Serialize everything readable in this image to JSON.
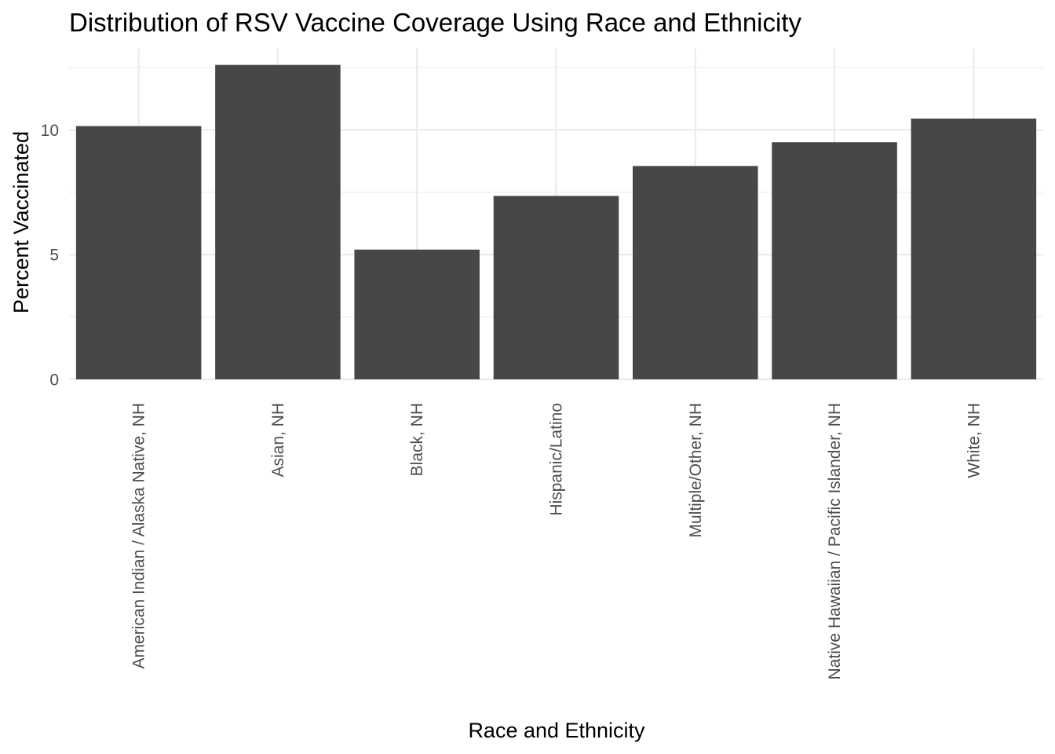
{
  "chart_data": {
    "type": "bar",
    "title": "Distribution of RSV Vaccine Coverage Using Race and Ethnicity",
    "xlabel": "Race and Ethnicity",
    "ylabel": "Percent Vaccinated",
    "categories": [
      "American Indian / Alaska Native, NH",
      "Asian, NH",
      "Black, NH",
      "Hispanic/Latino",
      "Multiple/Other, NH",
      "Native Hawaiian / Pacific Islander, NH",
      "White, NH"
    ],
    "values": [
      10.15,
      12.6,
      5.2,
      7.35,
      8.55,
      9.5,
      10.45
    ],
    "ylim": [
      0,
      13.25
    ],
    "yticks": [
      0,
      5,
      10
    ],
    "ytick_labels": [
      "0",
      "5",
      "10"
    ],
    "grid": true,
    "legend": "none",
    "colors": {
      "bar": "#474747",
      "grid": "#ebebeb",
      "tick_text": "#4d4d4d",
      "text": "#000000",
      "background": "#ffffff"
    }
  }
}
